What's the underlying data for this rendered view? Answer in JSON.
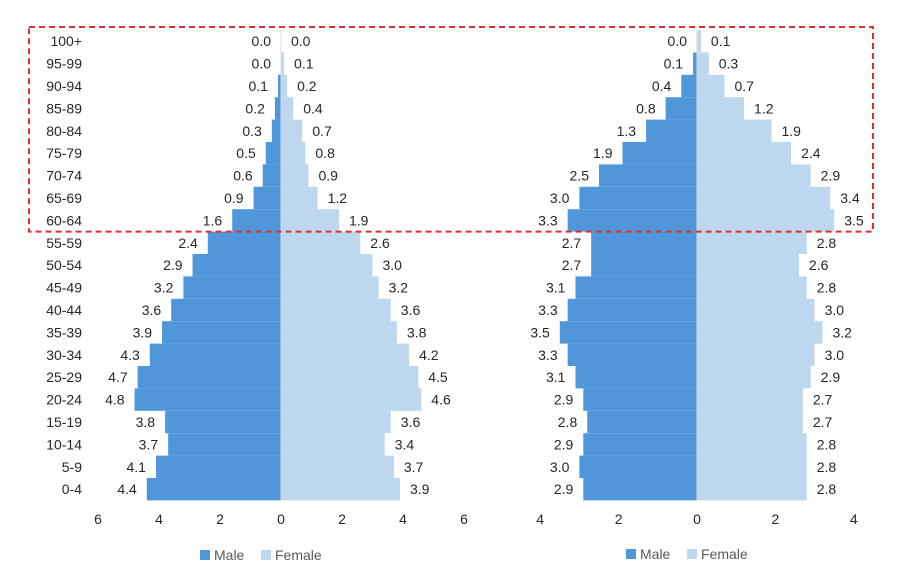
{
  "chart_data": [
    {
      "type": "bar",
      "orientation": "horizontal",
      "style": "population-pyramid",
      "categories": [
        "100+",
        "95-99",
        "90-94",
        "85-89",
        "80-84",
        "75-79",
        "70-74",
        "65-69",
        "60-64",
        "55-59",
        "50-54",
        "45-49",
        "40-44",
        "35-39",
        "30-34",
        "25-29",
        "20-24",
        "15-19",
        "10-14",
        "5-9",
        "0-4"
      ],
      "series": [
        {
          "name": "Male",
          "color": "#4F97D8",
          "values": [
            0.0,
            0.0,
            0.1,
            0.2,
            0.3,
            0.5,
            0.6,
            0.9,
            1.6,
            2.4,
            2.9,
            3.2,
            3.6,
            3.9,
            4.3,
            4.7,
            4.8,
            3.8,
            3.7,
            4.1,
            4.4
          ]
        },
        {
          "name": "Female",
          "color": "#BDD7EE",
          "values": [
            0.0,
            0.1,
            0.2,
            0.4,
            0.7,
            0.8,
            0.9,
            1.2,
            1.9,
            2.6,
            3.0,
            3.2,
            3.6,
            3.8,
            4.2,
            4.5,
            4.6,
            3.6,
            3.4,
            3.7,
            3.9
          ]
        }
      ],
      "xlim": [
        -6,
        6
      ],
      "x_ticks": [
        "6",
        "4",
        "2",
        "0",
        "2",
        "4",
        "6"
      ],
      "grid": false,
      "legend": "bottom"
    },
    {
      "type": "bar",
      "orientation": "horizontal",
      "style": "population-pyramid",
      "categories": [
        "100+",
        "95-99",
        "90-94",
        "85-89",
        "80-84",
        "75-79",
        "70-74",
        "65-69",
        "60-64",
        "55-59",
        "50-54",
        "45-49",
        "40-44",
        "35-39",
        "30-34",
        "25-29",
        "20-24",
        "15-19",
        "10-14",
        "5-9",
        "0-4"
      ],
      "series": [
        {
          "name": "Male",
          "color": "#4F97D8",
          "values": [
            0.0,
            0.1,
            0.4,
            0.8,
            1.3,
            1.9,
            2.5,
            3.0,
            3.3,
            2.7,
            2.7,
            3.1,
            3.3,
            3.5,
            3.3,
            3.1,
            2.9,
            2.8,
            2.9,
            3.0,
            2.9
          ]
        },
        {
          "name": "Female",
          "color": "#BDD7EE",
          "values": [
            0.1,
            0.3,
            0.7,
            1.2,
            1.9,
            2.4,
            2.9,
            3.4,
            3.5,
            2.8,
            2.6,
            2.8,
            3.0,
            3.2,
            3.0,
            2.9,
            2.7,
            2.7,
            2.8,
            2.8,
            2.8
          ]
        }
      ],
      "xlim": [
        -4,
        4
      ],
      "x_ticks": [
        "4",
        "2",
        "0",
        "2",
        "4"
      ],
      "grid": false,
      "legend": "bottom"
    }
  ],
  "highlight": {
    "from": "100+",
    "to": "60-64",
    "color": "#E03030"
  }
}
